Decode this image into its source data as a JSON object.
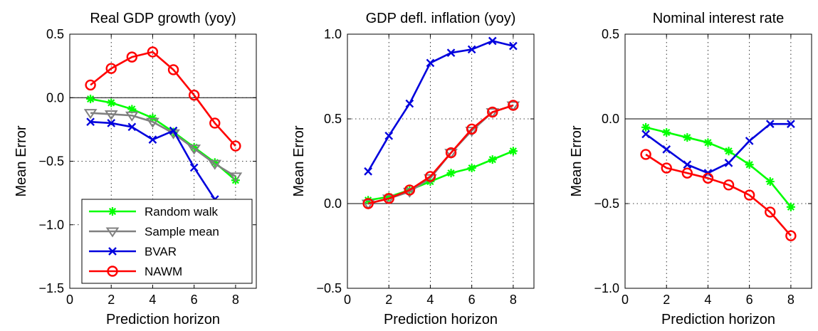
{
  "chart_data": [
    {
      "type": "line",
      "title": "Real GDP growth (yoy)",
      "xlabel": "Prediction horizon",
      "ylabel": "Mean Error",
      "xlim": [
        0,
        9
      ],
      "ylim": [
        -1.5,
        0.5
      ],
      "xticks": [
        0,
        2,
        4,
        6,
        8
      ],
      "yticks": [
        -1.5,
        -1.0,
        -0.5,
        0.0,
        0.5
      ],
      "ytick_labels": [
        "−1.5",
        "−1.0",
        "−0.5",
        "0.0",
        "0.5"
      ],
      "zero_line": true,
      "grid": "dotted",
      "legend": "bottom-left",
      "x": [
        1,
        2,
        3,
        4,
        5,
        6,
        7,
        8
      ],
      "series": [
        {
          "name": "Random walk",
          "color": "#00ff00",
          "marker": "star",
          "values": [
            -0.01,
            -0.04,
            -0.09,
            -0.16,
            -0.27,
            -0.39,
            -0.51,
            -0.65
          ]
        },
        {
          "name": "Sample mean",
          "color": "#808080",
          "marker": "triangle-down",
          "values": [
            -0.12,
            -0.13,
            -0.14,
            -0.19,
            -0.28,
            -0.4,
            -0.52,
            -0.62
          ]
        },
        {
          "name": "BVAR",
          "color": "#0000dd",
          "marker": "x",
          "values": [
            -0.19,
            -0.2,
            -0.23,
            -0.33,
            -0.26,
            -0.55,
            -0.8,
            -1.15
          ]
        },
        {
          "name": "NAWM",
          "color": "#ff0000",
          "marker": "circle",
          "values": [
            0.1,
            0.23,
            0.32,
            0.36,
            0.22,
            0.02,
            -0.2,
            -0.38
          ]
        }
      ]
    },
    {
      "type": "line",
      "title": "GDP defl. inflation (yoy)",
      "xlabel": "Prediction horizon",
      "ylabel": "Mean Error",
      "xlim": [
        0,
        9
      ],
      "ylim": [
        -0.5,
        1.0
      ],
      "xticks": [
        0,
        2,
        4,
        6,
        8
      ],
      "yticks": [
        -0.5,
        0.0,
        0.5,
        1.0
      ],
      "ytick_labels": [
        "−0.5",
        "0.0",
        "0.5",
        "1.0"
      ],
      "zero_line": true,
      "grid": "dotted",
      "x": [
        1,
        2,
        3,
        4,
        5,
        6,
        7,
        8
      ],
      "series": [
        {
          "name": "Random walk",
          "color": "#00ff00",
          "marker": "star",
          "values": [
            0.02,
            0.04,
            0.08,
            0.13,
            0.18,
            0.21,
            0.26,
            0.31
          ]
        },
        {
          "name": "Sample mean",
          "color": "#808080",
          "marker": "triangle-down",
          "values": [
            0.0,
            0.03,
            0.07,
            0.15,
            0.3,
            0.43,
            0.54,
            0.58
          ]
        },
        {
          "name": "BVAR",
          "color": "#0000dd",
          "marker": "x",
          "values": [
            0.19,
            0.4,
            0.59,
            0.83,
            0.89,
            0.91,
            0.96,
            0.93
          ]
        },
        {
          "name": "NAWM",
          "color": "#ff0000",
          "marker": "circle",
          "values": [
            0.0,
            0.03,
            0.08,
            0.16,
            0.3,
            0.44,
            0.54,
            0.58
          ]
        }
      ]
    },
    {
      "type": "line",
      "title": "Nominal interest rate",
      "xlabel": "Prediction horizon",
      "ylabel": "Mean Error",
      "xlim": [
        0,
        9
      ],
      "ylim": [
        -1.0,
        0.5
      ],
      "xticks": [
        0,
        2,
        4,
        6,
        8
      ],
      "yticks": [
        -1.0,
        -0.5,
        0.0,
        0.5
      ],
      "ytick_labels": [
        "−1.0",
        "−0.5",
        "0.0",
        "0.5"
      ],
      "zero_line": true,
      "grid": "dotted",
      "x": [
        1,
        2,
        3,
        4,
        5,
        6,
        7,
        8
      ],
      "series": [
        {
          "name": "Random walk",
          "color": "#00ff00",
          "marker": "star",
          "values": [
            -0.05,
            -0.08,
            -0.11,
            -0.14,
            -0.19,
            -0.27,
            -0.37,
            -0.52
          ]
        },
        {
          "name": "BVAR",
          "color": "#0000dd",
          "marker": "x",
          "values": [
            -0.09,
            -0.18,
            -0.27,
            -0.32,
            -0.26,
            -0.13,
            -0.03,
            -0.03
          ]
        },
        {
          "name": "NAWM",
          "color": "#ff0000",
          "marker": "circle",
          "values": [
            -0.21,
            -0.29,
            -0.32,
            -0.35,
            -0.39,
            -0.45,
            -0.55,
            -0.69
          ]
        }
      ]
    }
  ],
  "legend": {
    "entries": [
      {
        "label": "Random walk",
        "color": "#00ff00",
        "marker": "star"
      },
      {
        "label": "Sample mean",
        "color": "#808080",
        "marker": "triangle-down"
      },
      {
        "label": "BVAR",
        "color": "#0000dd",
        "marker": "x"
      },
      {
        "label": "NAWM",
        "color": "#ff0000",
        "marker": "circle"
      }
    ]
  }
}
